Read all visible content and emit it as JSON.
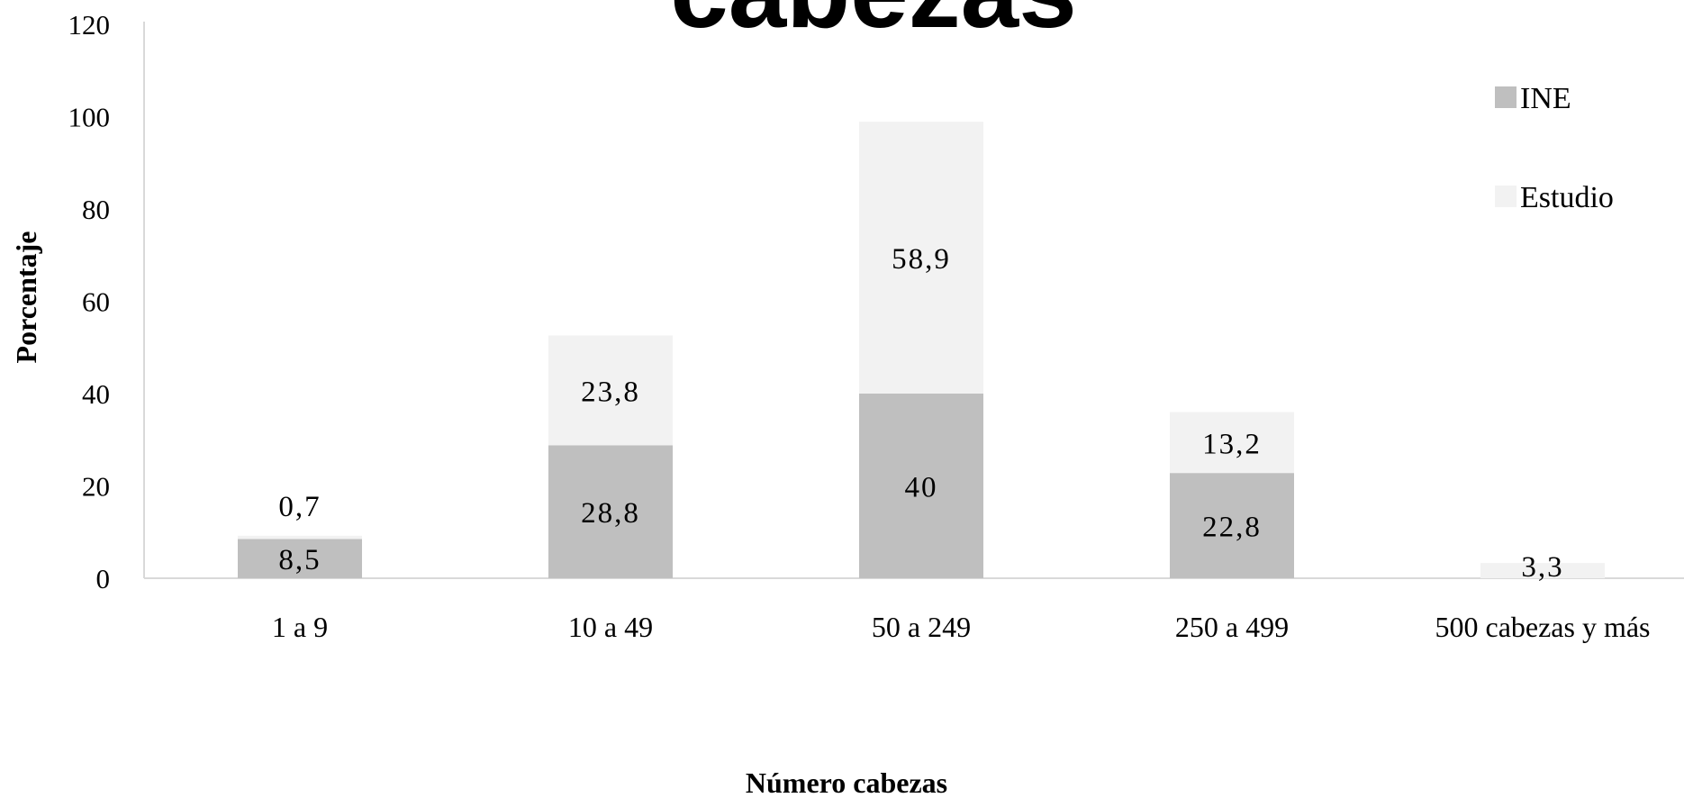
{
  "chart_data": {
    "type": "bar",
    "stacked": true,
    "title": "cabezas",
    "xlabel": "Número cabezas",
    "ylabel": "Porcentaje",
    "ylim": [
      0,
      120
    ],
    "yticks": [
      "0",
      "20",
      "40",
      "60",
      "80",
      "100",
      "120"
    ],
    "categories": [
      "1 a 9",
      "10 a 49",
      "50 a 249",
      "250 a 499",
      "500 cabezas y más"
    ],
    "series": [
      {
        "name": "INE",
        "values": [
          8.5,
          28.8,
          40,
          22.8,
          0
        ],
        "labels": [
          "8,5",
          "28,8",
          "40",
          "22,8",
          ""
        ],
        "color": "#bfbfbf"
      },
      {
        "name": "Estudio",
        "values": [
          0.7,
          23.8,
          58.9,
          13.2,
          3.3
        ],
        "labels": [
          "0,7",
          "23,8",
          "58,9",
          "13,2",
          "3,3"
        ],
        "color": "#f2f2f2"
      }
    ],
    "legend_position": "top-right",
    "grid": false,
    "axis_color": "#d9d9d9"
  }
}
